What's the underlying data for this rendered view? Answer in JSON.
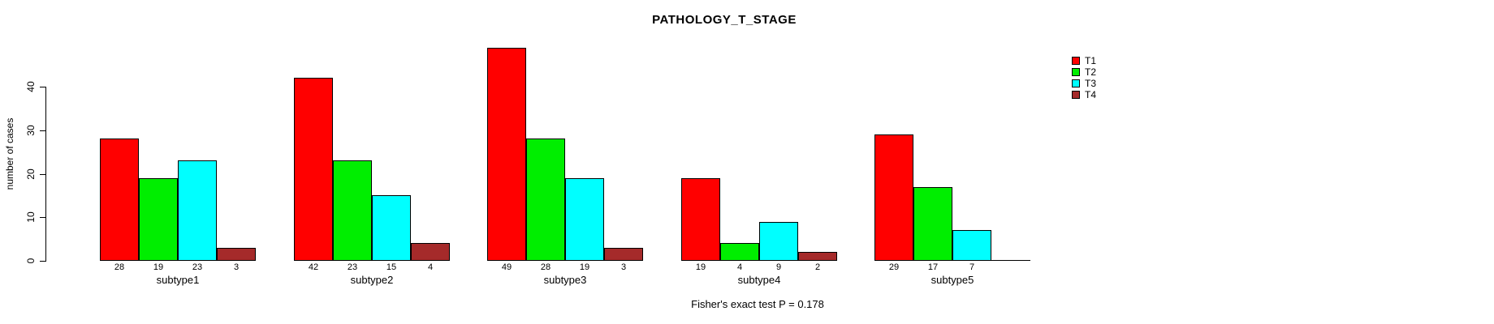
{
  "chart_data": {
    "type": "bar",
    "title": "PATHOLOGY_T_STAGE",
    "ylabel": "number of cases",
    "ylim": [
      0,
      40
    ],
    "yticks": [
      0,
      10,
      20,
      30,
      40
    ],
    "grid": false,
    "legend_position": "right",
    "categories": [
      "subtype1",
      "subtype2",
      "subtype3",
      "subtype4",
      "subtype5"
    ],
    "series": [
      {
        "name": "T1",
        "color": "#FF0000",
        "values": [
          28,
          42,
          49,
          19,
          29
        ]
      },
      {
        "name": "T2",
        "color": "#00EE00",
        "values": [
          19,
          23,
          28,
          4,
          17
        ]
      },
      {
        "name": "T3",
        "color": "#00FFFF",
        "values": [
          23,
          15,
          19,
          9,
          7
        ]
      },
      {
        "name": "T4",
        "color": "#A52A2A",
        "values": [
          3,
          4,
          3,
          2,
          0
        ]
      }
    ],
    "bar_value_labels": [
      [
        "28",
        "19",
        "23",
        "3"
      ],
      [
        "42",
        "23",
        "15",
        "4"
      ],
      [
        "49",
        "28",
        "19",
        "3"
      ],
      [
        "19",
        "4",
        "9",
        "2"
      ],
      [
        "29",
        "17",
        "7",
        ""
      ]
    ],
    "annotation": "Fisher's exact test P = 0.178"
  }
}
